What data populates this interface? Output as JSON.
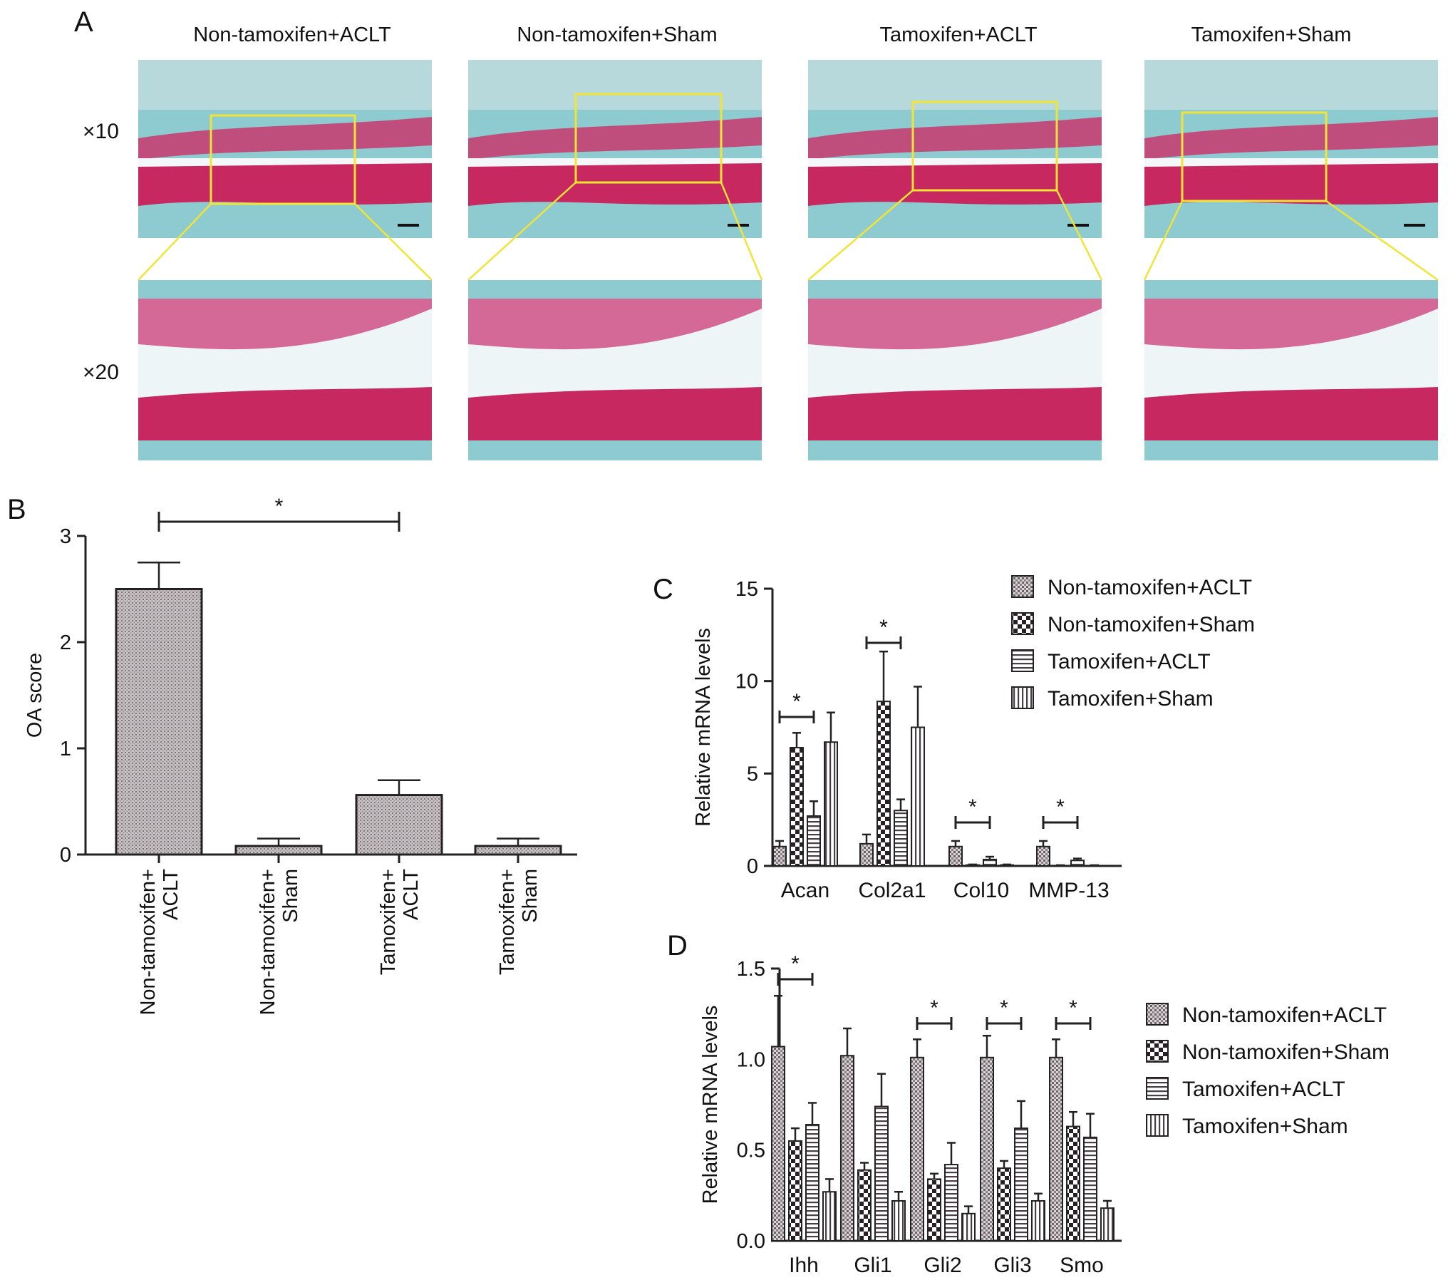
{
  "panels": {
    "a": {
      "letter": "A",
      "columns": [
        "Non-tamoxifen+ACLT",
        "Non-tamoxifen+Sham",
        "Tamoxifen+ACLT",
        "Tamoxifen+Sham"
      ],
      "magnifications": [
        "×10",
        "×20"
      ]
    },
    "b": {
      "letter": "B"
    },
    "c": {
      "letter": "C"
    },
    "d": {
      "letter": "D"
    }
  },
  "chart_data": [
    {
      "id": "b",
      "type": "bar",
      "title": "",
      "xlabel": "",
      "ylabel": "OA score",
      "ylim": [
        0,
        3
      ],
      "yticks": [
        "0",
        "1",
        "2",
        "3"
      ],
      "categories": [
        [
          "Non-tamoxifen+",
          "ACLT"
        ],
        [
          "Non-tamoxifen+",
          "Sham"
        ],
        [
          "Tamoxifen+",
          "ACLT"
        ],
        [
          "Tamoxifen+",
          "Sham"
        ]
      ],
      "values": [
        2.5,
        0.08,
        0.56,
        0.08
      ],
      "errors": [
        0.25,
        0.07,
        0.14,
        0.07
      ],
      "significance": [
        {
          "from": 0,
          "to": 2,
          "label": "*"
        }
      ],
      "grid": false
    },
    {
      "id": "c",
      "type": "bar",
      "title": "",
      "xlabel": "",
      "ylabel": "Relative mRNA levels",
      "ylim": [
        0,
        15
      ],
      "yticks": [
        "0",
        "5",
        "10",
        "15"
      ],
      "categories": [
        "Acan",
        "Col2a1",
        "Col10",
        "MMP-13"
      ],
      "series": [
        {
          "name": "Non-tamoxifen+ACLT",
          "pattern": "dots",
          "values": [
            1.05,
            1.2,
            1.05,
            1.05
          ],
          "errors": [
            0.3,
            0.5,
            0.3,
            0.3
          ]
        },
        {
          "name": "Non-tamoxifen+Sham",
          "pattern": "checker",
          "values": [
            6.4,
            8.9,
            0.05,
            0.02
          ],
          "errors": [
            0.8,
            2.7,
            0.03,
            0.02
          ]
        },
        {
          "name": "Tamoxifen+ACLT",
          "pattern": "hlines",
          "values": [
            2.7,
            3.0,
            0.35,
            0.3
          ],
          "errors": [
            0.8,
            0.6,
            0.15,
            0.1
          ]
        },
        {
          "name": "Tamoxifen+Sham",
          "pattern": "vlines",
          "values": [
            6.7,
            7.5,
            0.05,
            0.02
          ],
          "errors": [
            1.6,
            2.2,
            0.03,
            0.02
          ]
        }
      ],
      "significance": [
        {
          "category": 0,
          "label": "*"
        },
        {
          "category": 1,
          "label": "*"
        },
        {
          "category": 2,
          "label": "*"
        },
        {
          "category": 3,
          "label": "*"
        }
      ],
      "legend": "top-right",
      "grid": false
    },
    {
      "id": "d",
      "type": "bar",
      "title": "",
      "xlabel": "",
      "ylabel": "Relative mRNA levels",
      "ylim": [
        0,
        1.5
      ],
      "yticks": [
        "0.0",
        "0.5",
        "1.0",
        "1.5"
      ],
      "categories": [
        "Ihh",
        "Gli1",
        "Gli2",
        "Gli3",
        "Smo"
      ],
      "series": [
        {
          "name": "Non-tamoxifen+ACLT",
          "pattern": "dots",
          "values": [
            1.07,
            1.02,
            1.01,
            1.01,
            1.01
          ],
          "errors": [
            0.28,
            0.15,
            0.1,
            0.12,
            0.1
          ]
        },
        {
          "name": "Non-tamoxifen+Sham",
          "pattern": "checker",
          "values": [
            0.55,
            0.39,
            0.34,
            0.4,
            0.63
          ],
          "errors": [
            0.07,
            0.04,
            0.03,
            0.04,
            0.08
          ]
        },
        {
          "name": "Tamoxifen+ACLT",
          "pattern": "hlines",
          "values": [
            0.64,
            0.74,
            0.42,
            0.62,
            0.57
          ],
          "errors": [
            0.12,
            0.18,
            0.12,
            0.15,
            0.13
          ]
        },
        {
          "name": "Tamoxifen+Sham",
          "pattern": "vlines",
          "values": [
            0.27,
            0.22,
            0.15,
            0.22,
            0.18
          ],
          "errors": [
            0.07,
            0.05,
            0.04,
            0.04,
            0.04
          ]
        }
      ],
      "significance": [
        {
          "category": 0,
          "label": "*"
        },
        {
          "category": 2,
          "label": "*"
        },
        {
          "category": 3,
          "label": "*"
        },
        {
          "category": 4,
          "label": "*"
        }
      ],
      "legend": "right",
      "grid": false
    }
  ]
}
